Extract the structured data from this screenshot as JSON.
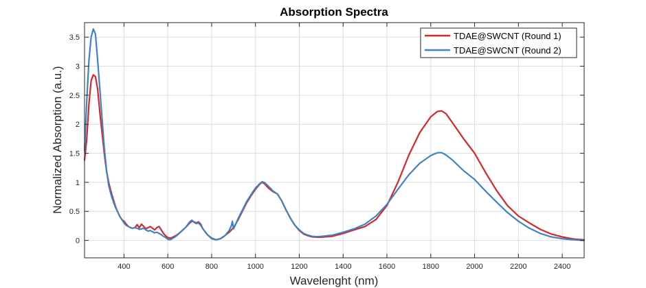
{
  "chart_data": {
    "type": "line",
    "title": "Absorption Spectra",
    "xlabel": "Wavelenght (nm)",
    "ylabel": "Normalized Absorption (a.u.)",
    "xlim": [
      220,
      2500
    ],
    "ylim": [
      -0.3,
      3.75
    ],
    "xticks": [
      400,
      600,
      800,
      1000,
      1200,
      1400,
      1600,
      1800,
      2000,
      2200,
      2400
    ],
    "yticks": [
      0,
      0.5,
      1,
      1.5,
      2,
      2.5,
      3,
      3.5
    ],
    "xtick_labels": [
      "400",
      "600",
      "800",
      "1000",
      "1200",
      "1400",
      "1600",
      "1800",
      "2000",
      "2200",
      "2400"
    ],
    "ytick_labels": [
      "0",
      "0.5",
      "1",
      "1.5",
      "2",
      "2.5",
      "3",
      "3.5"
    ],
    "grid": true,
    "legend_position": "top-right",
    "series": [
      {
        "name": "TDAE@SWCNT (Round 1)",
        "color": "#d7262b",
        "points": [
          [
            220,
            1.38
          ],
          [
            230,
            1.75
          ],
          [
            240,
            2.35
          ],
          [
            250,
            2.75
          ],
          [
            260,
            2.85
          ],
          [
            270,
            2.82
          ],
          [
            280,
            2.6
          ],
          [
            290,
            2.2
          ],
          [
            300,
            1.85
          ],
          [
            310,
            1.5
          ],
          [
            320,
            1.2
          ],
          [
            330,
            1.0
          ],
          [
            340,
            0.85
          ],
          [
            350,
            0.72
          ],
          [
            360,
            0.6
          ],
          [
            370,
            0.5
          ],
          [
            380,
            0.42
          ],
          [
            390,
            0.36
          ],
          [
            400,
            0.33
          ],
          [
            410,
            0.28
          ],
          [
            420,
            0.24
          ],
          [
            430,
            0.22
          ],
          [
            440,
            0.21
          ],
          [
            450,
            0.22
          ],
          [
            460,
            0.27
          ],
          [
            470,
            0.22
          ],
          [
            480,
            0.28
          ],
          [
            490,
            0.24
          ],
          [
            500,
            0.2
          ],
          [
            510,
            0.22
          ],
          [
            520,
            0.24
          ],
          [
            530,
            0.21
          ],
          [
            540,
            0.18
          ],
          [
            550,
            0.22
          ],
          [
            560,
            0.24
          ],
          [
            570,
            0.18
          ],
          [
            580,
            0.12
          ],
          [
            590,
            0.08
          ],
          [
            600,
            0.05
          ],
          [
            610,
            0.04
          ],
          [
            620,
            0.05
          ],
          [
            640,
            0.09
          ],
          [
            660,
            0.15
          ],
          [
            680,
            0.22
          ],
          [
            700,
            0.3
          ],
          [
            710,
            0.33
          ],
          [
            720,
            0.32
          ],
          [
            730,
            0.3
          ],
          [
            740,
            0.32
          ],
          [
            750,
            0.28
          ],
          [
            760,
            0.2
          ],
          [
            780,
            0.1
          ],
          [
            800,
            0.04
          ],
          [
            820,
            0.01
          ],
          [
            840,
            0.03
          ],
          [
            860,
            0.08
          ],
          [
            880,
            0.14
          ],
          [
            900,
            0.22
          ],
          [
            920,
            0.35
          ],
          [
            940,
            0.5
          ],
          [
            960,
            0.65
          ],
          [
            980,
            0.77
          ],
          [
            1000,
            0.88
          ],
          [
            1020,
            0.97
          ],
          [
            1030,
            1.0
          ],
          [
            1040,
            0.98
          ],
          [
            1060,
            0.9
          ],
          [
            1080,
            0.84
          ],
          [
            1100,
            0.8
          ],
          [
            1120,
            0.68
          ],
          [
            1140,
            0.52
          ],
          [
            1160,
            0.38
          ],
          [
            1180,
            0.26
          ],
          [
            1200,
            0.17
          ],
          [
            1220,
            0.11
          ],
          [
            1240,
            0.08
          ],
          [
            1260,
            0.06
          ],
          [
            1280,
            0.055
          ],
          [
            1300,
            0.055
          ],
          [
            1350,
            0.07
          ],
          [
            1400,
            0.12
          ],
          [
            1450,
            0.18
          ],
          [
            1500,
            0.24
          ],
          [
            1550,
            0.36
          ],
          [
            1600,
            0.6
          ],
          [
            1650,
            1.0
          ],
          [
            1700,
            1.47
          ],
          [
            1750,
            1.86
          ],
          [
            1800,
            2.13
          ],
          [
            1830,
            2.22
          ],
          [
            1850,
            2.23
          ],
          [
            1870,
            2.18
          ],
          [
            1900,
            2.02
          ],
          [
            1950,
            1.75
          ],
          [
            2000,
            1.5
          ],
          [
            2050,
            1.17
          ],
          [
            2100,
            0.86
          ],
          [
            2150,
            0.6
          ],
          [
            2200,
            0.42
          ],
          [
            2250,
            0.3
          ],
          [
            2300,
            0.19
          ],
          [
            2350,
            0.11
          ],
          [
            2400,
            0.06
          ],
          [
            2450,
            0.025
          ],
          [
            2500,
            0.01
          ]
        ]
      },
      {
        "name": "TDAE@SWCNT (Round 2)",
        "color": "#3f82c2",
        "points": [
          [
            220,
            1.55
          ],
          [
            230,
            2.4
          ],
          [
            240,
            3.1
          ],
          [
            250,
            3.5
          ],
          [
            260,
            3.64
          ],
          [
            270,
            3.55
          ],
          [
            280,
            3.1
          ],
          [
            290,
            2.6
          ],
          [
            300,
            2.1
          ],
          [
            310,
            1.6
          ],
          [
            320,
            1.22
          ],
          [
            330,
            0.95
          ],
          [
            340,
            0.8
          ],
          [
            350,
            0.68
          ],
          [
            360,
            0.58
          ],
          [
            370,
            0.5
          ],
          [
            380,
            0.42
          ],
          [
            390,
            0.36
          ],
          [
            400,
            0.3
          ],
          [
            410,
            0.26
          ],
          [
            420,
            0.24
          ],
          [
            430,
            0.22
          ],
          [
            440,
            0.21
          ],
          [
            450,
            0.22
          ],
          [
            460,
            0.21
          ],
          [
            470,
            0.19
          ],
          [
            480,
            0.2
          ],
          [
            490,
            0.21
          ],
          [
            500,
            0.18
          ],
          [
            510,
            0.16
          ],
          [
            520,
            0.17
          ],
          [
            530,
            0.15
          ],
          [
            540,
            0.13
          ],
          [
            550,
            0.14
          ],
          [
            560,
            0.12
          ],
          [
            570,
            0.1
          ],
          [
            580,
            0.07
          ],
          [
            590,
            0.05
          ],
          [
            600,
            0.02
          ],
          [
            610,
            0.01
          ],
          [
            620,
            0.03
          ],
          [
            640,
            0.08
          ],
          [
            660,
            0.15
          ],
          [
            680,
            0.22
          ],
          [
            700,
            0.32
          ],
          [
            710,
            0.35
          ],
          [
            720,
            0.31
          ],
          [
            730,
            0.29
          ],
          [
            740,
            0.3
          ],
          [
            750,
            0.26
          ],
          [
            760,
            0.2
          ],
          [
            780,
            0.1
          ],
          [
            800,
            0.03
          ],
          [
            820,
            0.01
          ],
          [
            840,
            0.03
          ],
          [
            860,
            0.08
          ],
          [
            880,
            0.17
          ],
          [
            890,
            0.25
          ],
          [
            895,
            0.33
          ],
          [
            900,
            0.2
          ],
          [
            910,
            0.28
          ],
          [
            920,
            0.37
          ],
          [
            940,
            0.52
          ],
          [
            960,
            0.67
          ],
          [
            980,
            0.79
          ],
          [
            1000,
            0.9
          ],
          [
            1020,
            0.98
          ],
          [
            1030,
            1.01
          ],
          [
            1040,
            1.0
          ],
          [
            1060,
            0.93
          ],
          [
            1080,
            0.85
          ],
          [
            1100,
            0.8
          ],
          [
            1120,
            0.68
          ],
          [
            1140,
            0.52
          ],
          [
            1160,
            0.38
          ],
          [
            1180,
            0.26
          ],
          [
            1200,
            0.18
          ],
          [
            1220,
            0.12
          ],
          [
            1240,
            0.09
          ],
          [
            1260,
            0.07
          ],
          [
            1280,
            0.065
          ],
          [
            1300,
            0.07
          ],
          [
            1350,
            0.09
          ],
          [
            1400,
            0.14
          ],
          [
            1450,
            0.2
          ],
          [
            1500,
            0.28
          ],
          [
            1550,
            0.42
          ],
          [
            1600,
            0.62
          ],
          [
            1650,
            0.88
          ],
          [
            1700,
            1.13
          ],
          [
            1750,
            1.33
          ],
          [
            1800,
            1.46
          ],
          [
            1830,
            1.51
          ],
          [
            1850,
            1.51
          ],
          [
            1870,
            1.47
          ],
          [
            1900,
            1.38
          ],
          [
            1950,
            1.2
          ],
          [
            2000,
            1.05
          ],
          [
            2050,
            0.85
          ],
          [
            2100,
            0.66
          ],
          [
            2150,
            0.48
          ],
          [
            2200,
            0.33
          ],
          [
            2250,
            0.21
          ],
          [
            2300,
            0.12
          ],
          [
            2350,
            0.06
          ],
          [
            2400,
            0.03
          ],
          [
            2450,
            0.01
          ],
          [
            2500,
            0.0
          ]
        ]
      }
    ]
  }
}
